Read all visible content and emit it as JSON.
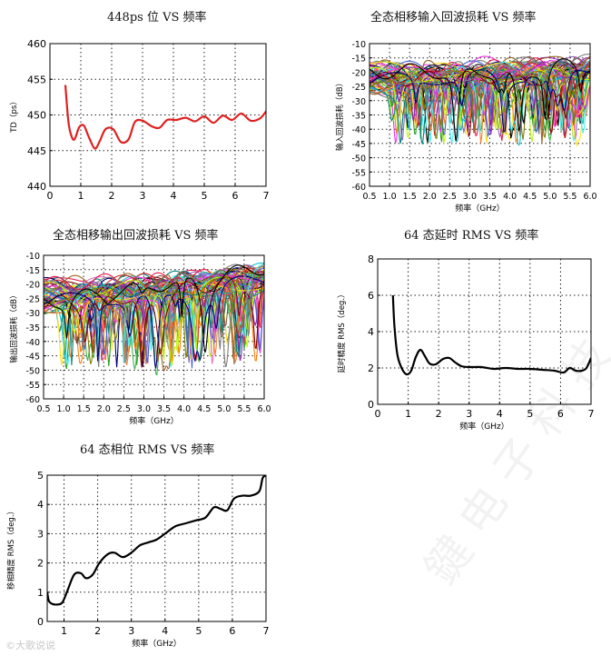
{
  "chart_data": [
    {
      "type": "line",
      "title": "448ps 位  VS  频率",
      "ylabel": "TD（ps）",
      "xlabel": "",
      "xlim": [
        0,
        7
      ],
      "ylim": [
        440,
        460
      ],
      "xticks": [
        0,
        1,
        2,
        3,
        4,
        5,
        6,
        7
      ],
      "yticks": [
        440,
        445,
        450,
        455,
        460
      ],
      "grid": true,
      "series": [
        {
          "color": "#e02020",
          "x": [
            0.5,
            0.6,
            0.7,
            0.8,
            0.95,
            1.1,
            1.25,
            1.45,
            1.6,
            1.8,
            2.05,
            2.3,
            2.55,
            2.75,
            3.0,
            3.3,
            3.55,
            3.8,
            4.1,
            4.4,
            4.7,
            5.0,
            5.3,
            5.6,
            5.9,
            6.2,
            6.5,
            6.8,
            7.0
          ],
          "y": [
            454.2,
            449.0,
            447.0,
            446.6,
            448.3,
            448.5,
            447.0,
            445.3,
            446.2,
            448.0,
            448.0,
            446.2,
            446.6,
            449.0,
            449.2,
            448.4,
            448.2,
            449.3,
            449.3,
            449.6,
            449.1,
            449.8,
            448.9,
            449.9,
            449.3,
            450.2,
            449.2,
            449.5,
            450.5
          ]
        }
      ]
    },
    {
      "type": "line",
      "title": "全态相移输入回波损耗  VS  频率",
      "ylabel": "输入回波损耗（dB）",
      "xlabel": "频率（GHz）",
      "xlim": [
        0.5,
        6.0
      ],
      "ylim": [
        -60,
        -10
      ],
      "xticks": [
        0.5,
        1.0,
        1.5,
        2.0,
        2.5,
        3.0,
        3.5,
        4.0,
        4.5,
        5.0,
        5.5,
        6.0
      ],
      "yticks": [
        -60,
        -55,
        -50,
        -45,
        -40,
        -35,
        -30,
        -25,
        -20,
        -15,
        -10
      ],
      "grid": true,
      "series_count": 64,
      "notch_range": [
        1.0,
        5.9
      ],
      "envelope_top": [
        -15,
        -14
      ],
      "notch_depth_range": [
        -50,
        -22
      ]
    },
    {
      "type": "line",
      "title": "全态相移输出回波损耗  VS  频率",
      "ylabel": "输出回波损耗（dB）",
      "xlabel": "频率（GHz）",
      "xlim": [
        0.5,
        6.0
      ],
      "ylim": [
        -60,
        -10
      ],
      "xticks": [
        0.5,
        1.0,
        1.5,
        2.0,
        2.5,
        3.0,
        3.5,
        4.0,
        4.5,
        5.0,
        5.5,
        6.0
      ],
      "yticks": [
        -60,
        -55,
        -50,
        -45,
        -40,
        -35,
        -30,
        -25,
        -20,
        -15,
        -10
      ],
      "grid": true,
      "series_count": 64,
      "notch_range": [
        0.9,
        5.9
      ],
      "envelope_top": [
        -17,
        -13
      ],
      "notch_depth_range": [
        -55,
        -22
      ]
    },
    {
      "type": "line",
      "title": "64 态延时 RMS VS  频率",
      "ylabel": "延时精度 RMS（deg.）",
      "xlabel": "频率（GHz）",
      "xlim": [
        0,
        7
      ],
      "ylim": [
        0,
        8
      ],
      "xticks": [
        0,
        1,
        2,
        3,
        4,
        5,
        6,
        7
      ],
      "yticks": [
        0,
        2,
        4,
        6,
        8
      ],
      "grid": true,
      "series": [
        {
          "color": "#000000",
          "x": [
            0.5,
            0.55,
            0.65,
            0.8,
            0.95,
            1.1,
            1.25,
            1.4,
            1.55,
            1.7,
            1.9,
            2.15,
            2.35,
            2.55,
            2.75,
            3.0,
            3.4,
            3.8,
            4.2,
            4.6,
            5.0,
            5.4,
            5.8,
            6.1,
            6.3,
            6.5,
            6.7,
            6.85,
            7.0
          ],
          "y": [
            6.0,
            4.3,
            2.7,
            1.95,
            1.65,
            1.85,
            2.6,
            3.0,
            2.65,
            2.25,
            2.2,
            2.5,
            2.55,
            2.3,
            2.1,
            2.05,
            2.05,
            1.95,
            2.0,
            1.95,
            1.95,
            1.9,
            1.85,
            1.75,
            2.0,
            1.85,
            1.85,
            2.0,
            2.55
          ]
        }
      ]
    },
    {
      "type": "line",
      "title": "64 态相位 RMS VS  频率",
      "ylabel": "移相精度 RMS（deg.）",
      "xlabel": "频率（GHz）",
      "xlim": [
        0.5,
        7
      ],
      "ylim": [
        0,
        5
      ],
      "xticks": [
        1,
        2,
        3,
        4,
        5,
        6,
        7
      ],
      "yticks": [
        0,
        1,
        2,
        3,
        4,
        5
      ],
      "grid": true,
      "series": [
        {
          "color": "#000000",
          "x": [
            0.5,
            0.55,
            0.65,
            0.8,
            0.95,
            1.1,
            1.3,
            1.5,
            1.65,
            1.85,
            2.05,
            2.3,
            2.5,
            2.75,
            3.0,
            3.25,
            3.5,
            3.75,
            4.0,
            4.3,
            4.6,
            4.9,
            5.2,
            5.45,
            5.65,
            5.85,
            6.05,
            6.3,
            6.55,
            6.8,
            6.9,
            7.0
          ],
          "y": [
            1.0,
            0.7,
            0.6,
            0.58,
            0.65,
            1.05,
            1.6,
            1.65,
            1.48,
            1.6,
            2.0,
            2.3,
            2.35,
            2.2,
            2.35,
            2.6,
            2.7,
            2.8,
            3.0,
            3.25,
            3.35,
            3.45,
            3.55,
            3.9,
            3.85,
            3.8,
            4.2,
            4.3,
            4.3,
            4.45,
            4.9,
            5.0
          ]
        }
      ]
    }
  ],
  "watermark": "©大歌说说"
}
